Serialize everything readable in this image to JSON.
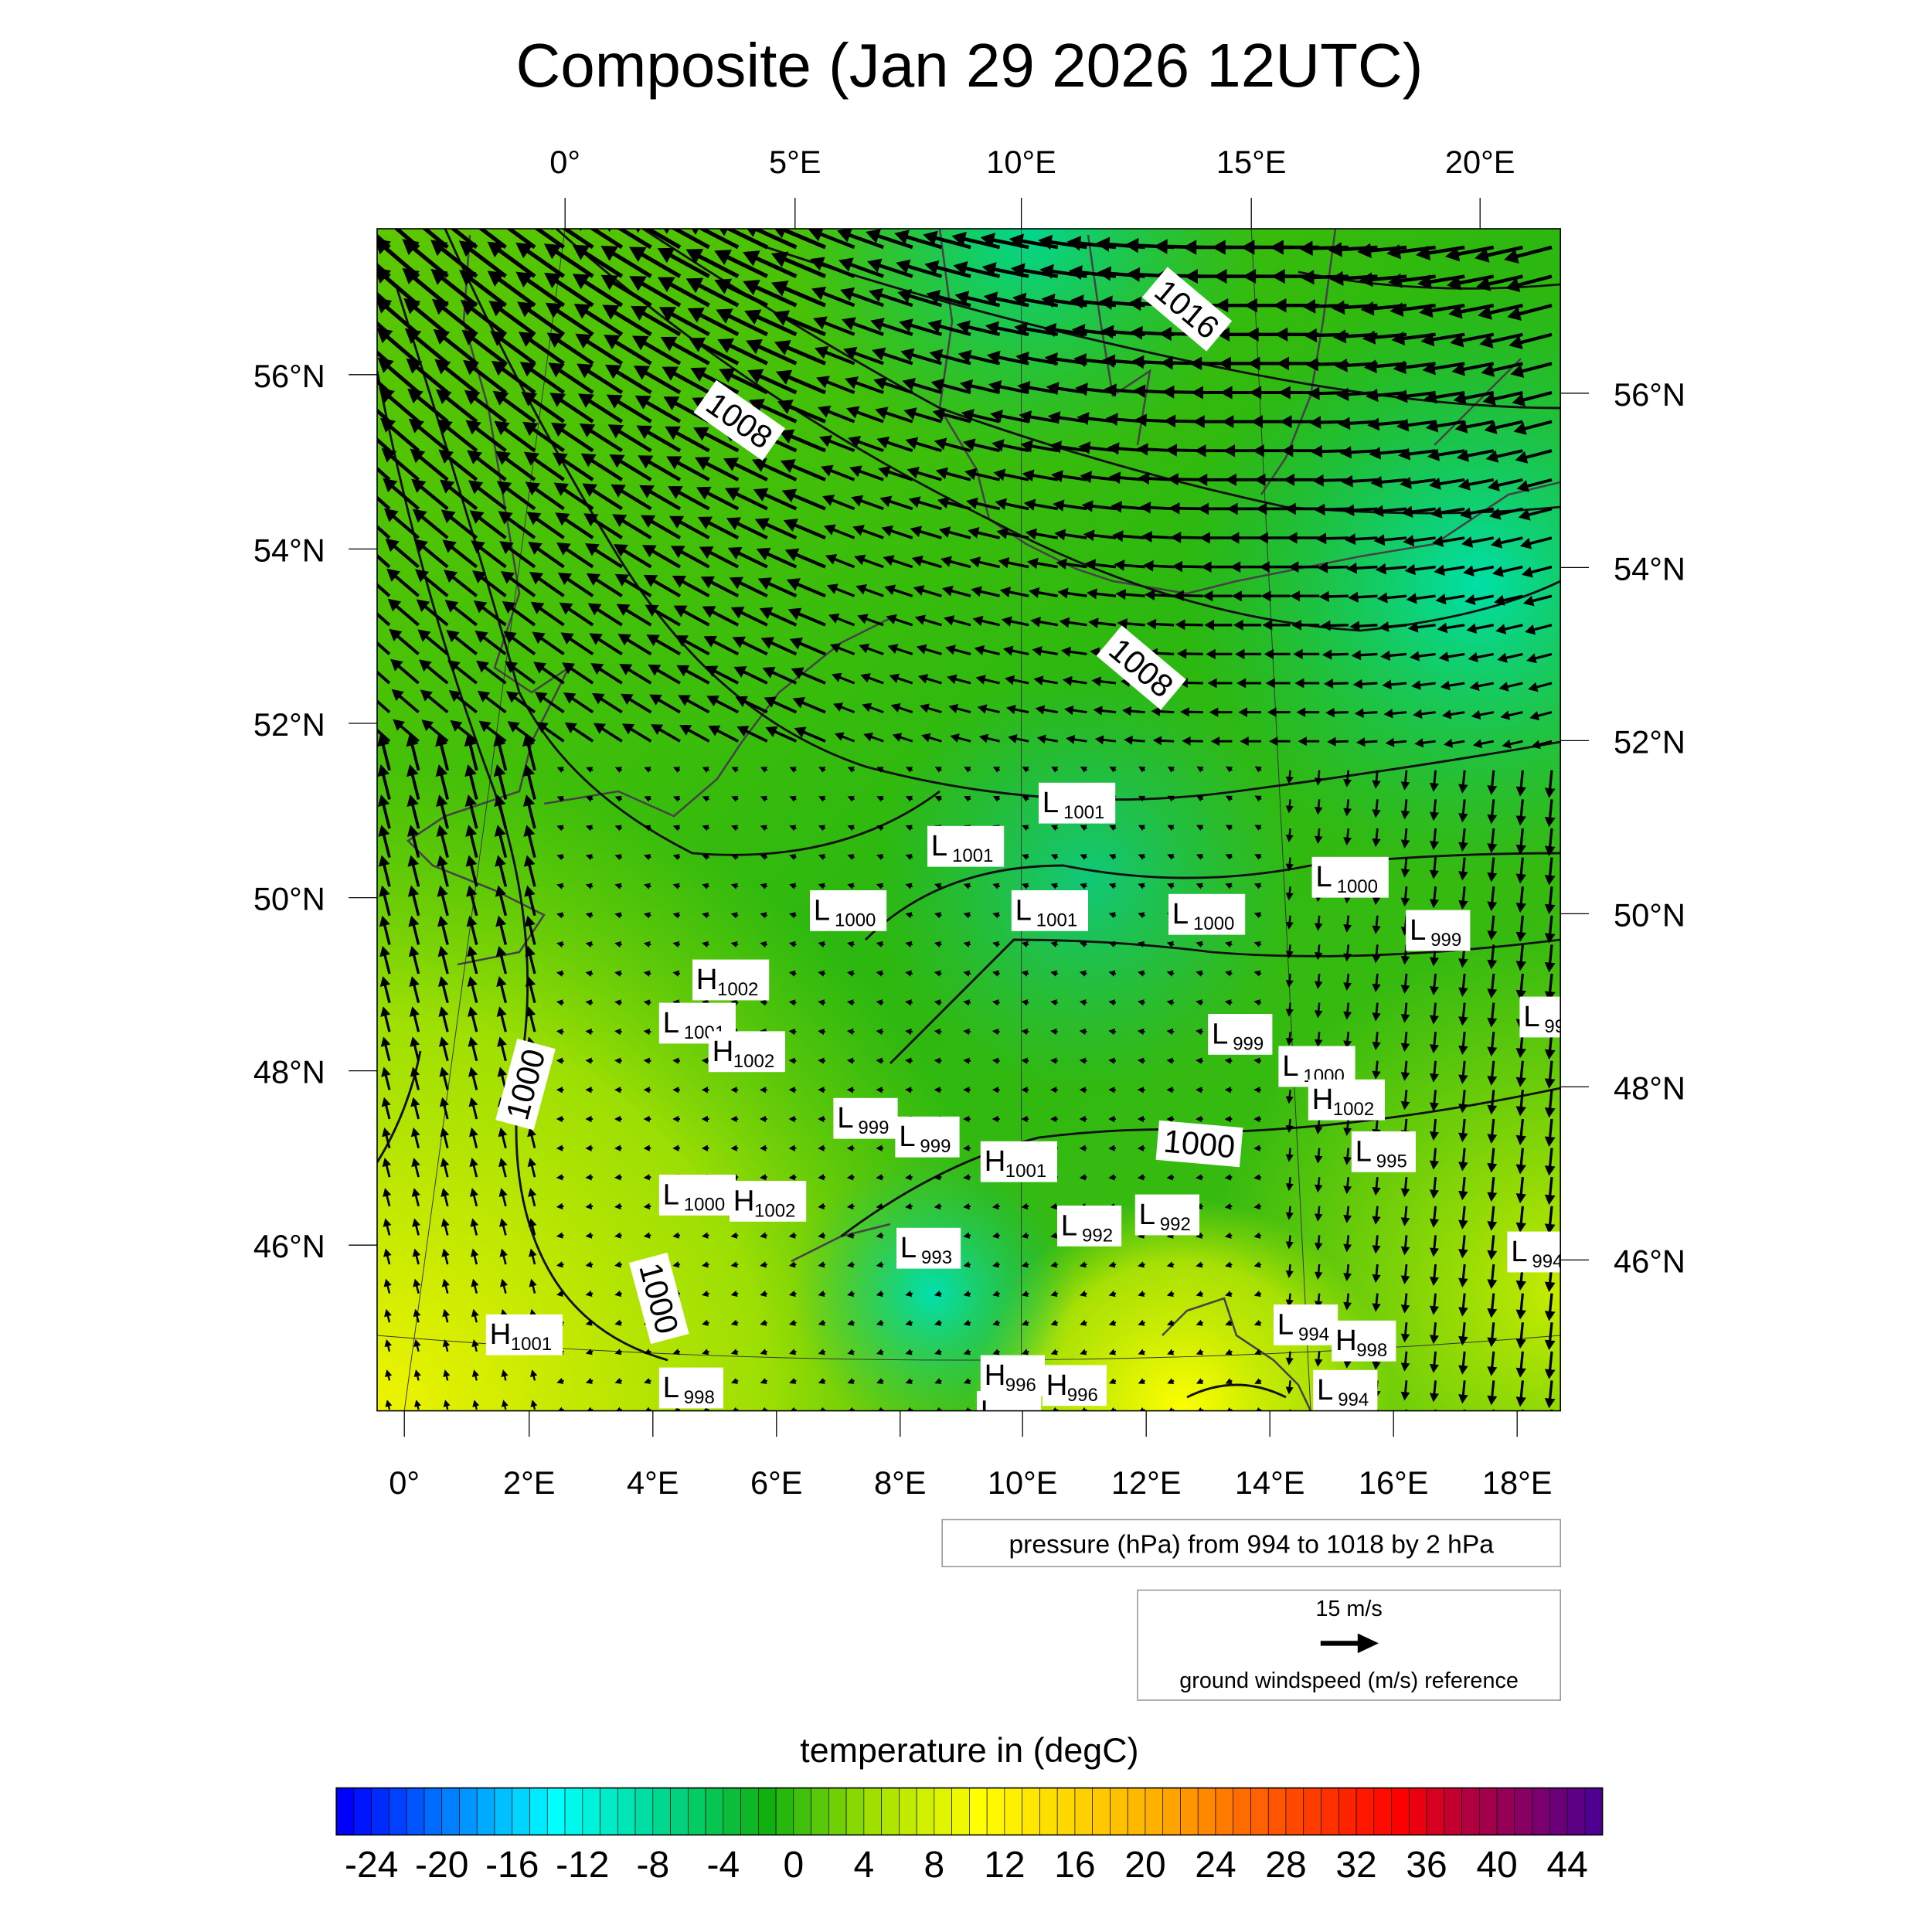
{
  "chart_data": {
    "type": "heatmap",
    "title": "Composite (Jan 29 2026 12UTC)",
    "top_lon_ticks": [
      "0°",
      "5°E",
      "10°E",
      "15°E",
      "20°E"
    ],
    "bottom_lon_ticks": [
      "0°",
      "2°E",
      "4°E",
      "6°E",
      "8°E",
      "10°E",
      "12°E",
      "14°E",
      "16°E",
      "18°E"
    ],
    "left_lat_ticks": [
      "56°N",
      "54°N",
      "52°N",
      "50°N",
      "48°N",
      "46°N"
    ],
    "right_lat_ticks": [
      "56°N",
      "54°N",
      "52°N",
      "50°N",
      "48°N",
      "46°N"
    ],
    "pressure_centers": [
      {
        "type": "L",
        "value": "1001"
      },
      {
        "type": "L",
        "value": "1001"
      },
      {
        "type": "L",
        "value": "1000"
      },
      {
        "type": "L",
        "value": "1001"
      },
      {
        "type": "L",
        "value": "1000"
      },
      {
        "type": "L",
        "value": "1000"
      },
      {
        "type": "L",
        "value": "999"
      },
      {
        "type": "L",
        "value": "99"
      },
      {
        "type": "H",
        "value": "1002"
      },
      {
        "type": "L",
        "value": "1001"
      },
      {
        "type": "H",
        "value": "1002"
      },
      {
        "type": "L",
        "value": "999"
      },
      {
        "type": "L",
        "value": "1000"
      },
      {
        "type": "H",
        "value": "1002"
      },
      {
        "type": "L",
        "value": "999"
      },
      {
        "type": "L",
        "value": "999"
      },
      {
        "type": "H",
        "value": "1001"
      },
      {
        "type": "L",
        "value": "995"
      },
      {
        "type": "L",
        "value": "1000"
      },
      {
        "type": "H",
        "value": "1002"
      },
      {
        "type": "L",
        "value": "992"
      },
      {
        "type": "L",
        "value": "992"
      },
      {
        "type": "L",
        "value": "993"
      },
      {
        "type": "L",
        "value": "994"
      },
      {
        "type": "H",
        "value": "1001"
      },
      {
        "type": "L",
        "value": "994"
      },
      {
        "type": "H",
        "value": "998"
      },
      {
        "type": "L",
        "value": "998"
      },
      {
        "type": "H",
        "value": "996"
      },
      {
        "type": "H",
        "value": "996"
      },
      {
        "type": "L",
        "value": "995"
      },
      {
        "type": "L",
        "value": "994"
      }
    ],
    "contour_labels": [
      "1016",
      "1008",
      "1008",
      "1000",
      "1000",
      "1000"
    ],
    "pressure_legend": "pressure (hPa) from 994 to 1018 by 2 hPa",
    "pressure_contours": {
      "min": 994,
      "max": 1018,
      "step": 2,
      "unit": "hPa"
    },
    "wind_reference": {
      "value_label": "15 m/s",
      "caption": "ground windspeed (m/s) reference",
      "value": 15
    },
    "colorbar": {
      "title": "temperature in (degC)",
      "range": [
        -26,
        46
      ],
      "step": 1,
      "tick_labels": [
        "-24",
        "-20",
        "-16",
        "-12",
        "-8",
        "-4",
        "0",
        "4",
        "8",
        "12",
        "16",
        "20",
        "24",
        "28",
        "32",
        "36",
        "40",
        "44"
      ],
      "color_stops": [
        "#0000ff",
        "#0080ff",
        "#00ffff",
        "#00d890",
        "#10b010",
        "#a0e000",
        "#ffff00",
        "#ffb000",
        "#ff6000",
        "#ff0000",
        "#b00040",
        "#500090"
      ]
    },
    "colors": {
      "base_field": "#3cc000",
      "warm_field": "#e8f400",
      "cold_field": "#00dca0",
      "coast": "#444444"
    }
  }
}
